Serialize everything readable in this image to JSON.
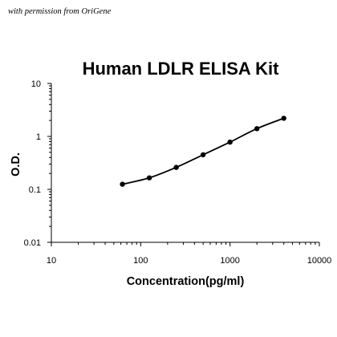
{
  "credit": "with permission from OriGene",
  "chart_data": {
    "type": "line",
    "title": "Human LDLR ELISA Kit",
    "xlabel": "Concentration(pg/ml)",
    "ylabel": "O.D.",
    "xscale": "log",
    "yscale": "log",
    "xlim": [
      10,
      10000
    ],
    "ylim": [
      0.01,
      10
    ],
    "x_ticks": [
      "10",
      "100",
      "1000",
      "10000"
    ],
    "y_ticks": [
      "0.01",
      "0.1",
      "1",
      "10"
    ],
    "grid": false,
    "legend": "none",
    "colors": {
      "line": "#000000",
      "marker": "#000000"
    },
    "series": [
      {
        "x": [
          62.5,
          125,
          250,
          500,
          1000,
          2000,
          4000
        ],
        "y": [
          0.125,
          0.165,
          0.26,
          0.45,
          0.78,
          1.4,
          2.2
        ]
      }
    ]
  }
}
